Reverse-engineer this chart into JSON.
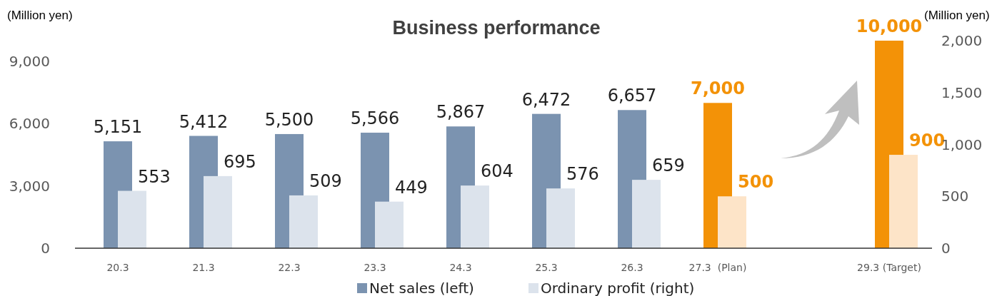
{
  "chart_data": {
    "type": "bar",
    "title": "Business performance",
    "ylabel": "(Million yen)",
    "y2label": "(Million yen)",
    "categories": [
      "20.3",
      "21.3",
      "22.3",
      "23.3",
      "24.3",
      "25.3",
      "26.3",
      "27.3  (Plan)",
      null,
      "29.3 (Target)"
    ],
    "series": [
      {
        "name": "Net sales (left)",
        "color": "#7b93b0",
        "colors": [
          "#7b93b0",
          "#7b93b0",
          "#7b93b0",
          "#7b93b0",
          "#7b93b0",
          "#7b93b0",
          "#7b93b0",
          "#f39207",
          null,
          "#f39207"
        ],
        "values": [
          5151,
          5412,
          5500,
          5566,
          5867,
          6472,
          6657,
          7000,
          null,
          10000
        ],
        "value_labels": [
          "5,151",
          "5,412",
          "5,500",
          "5,566",
          "5,867",
          "6,472",
          "6,657",
          "7,000",
          null,
          "10,000"
        ]
      },
      {
        "name": "Ordinary profit (right)",
        "color": "#dce3ec",
        "axis": "y2",
        "colors": [
          "#dce3ec",
          "#dce3ec",
          "#dce3ec",
          "#dce3ec",
          "#dce3ec",
          "#dce3ec",
          "#dce3ec",
          "#fde4c8",
          null,
          "#fde4c8"
        ],
        "values": [
          553,
          695,
          509,
          449,
          604,
          576,
          659,
          500,
          null,
          900
        ],
        "value_labels": [
          "553",
          "695",
          "509",
          "449",
          "604",
          "576",
          "659",
          "500",
          null,
          "900"
        ]
      }
    ],
    "ylim": [
      0,
      10000
    ],
    "yticks": [
      {
        "value": 0,
        "label": "0"
      },
      {
        "value": 3000,
        "label": "3,000"
      },
      {
        "value": 6000,
        "label": "6,000"
      },
      {
        "value": 9000,
        "label": "9,000"
      }
    ],
    "y2lim": [
      0,
      2000
    ],
    "y2ticks": [
      {
        "value": 0,
        "label": "0"
      },
      {
        "value": 500,
        "label": "500"
      },
      {
        "value": 1000,
        "label": "1,000"
      },
      {
        "value": 1500,
        "label": "1,500"
      },
      {
        "value": 2000,
        "label": "2,000"
      }
    ],
    "legend": "bottom"
  }
}
